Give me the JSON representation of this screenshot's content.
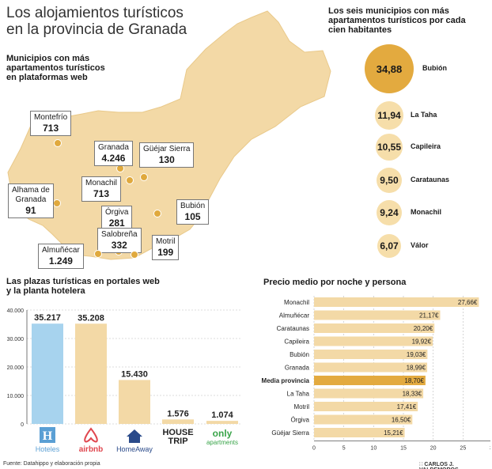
{
  "title": [
    "Los alojamientos turísticos",
    "en la provincia de Granada"
  ],
  "map": {
    "subtitle": "Municipios con más apartamentos turísticos en plataformas web",
    "callouts": [
      {
        "name": "Montefrío",
        "value": "713"
      },
      {
        "name": "Granada",
        "value": "4.246"
      },
      {
        "name": "Güéjar Sierra",
        "value": "130"
      },
      {
        "name": "Monachil",
        "value": "713"
      },
      {
        "name": "Alhama de Granada",
        "value": "91"
      },
      {
        "name": "Bubión",
        "value": "105"
      },
      {
        "name": "Órgiva",
        "value": "281"
      },
      {
        "name": "Salobreña",
        "value": "332"
      },
      {
        "name": "Almuñécar",
        "value": "1.249"
      },
      {
        "name": "Motril",
        "value": "199"
      }
    ],
    "fill_color": "#f3d9a6",
    "dot_color": "#e0a93d"
  },
  "bubbles": {
    "subtitle": "Los seis municipios con más apartamentos turísticos por cada cien habitantes",
    "items": [
      {
        "name": "Bubión",
        "value": "34,88",
        "highlight": true
      },
      {
        "name": "La Taha",
        "value": "11,94"
      },
      {
        "name": "Capileira",
        "value": "10,55"
      },
      {
        "name": "Carataunas",
        "value": "9,50"
      },
      {
        "name": "Monachil",
        "value": "9,24"
      },
      {
        "name": "Válor",
        "value": "6,07"
      }
    ],
    "highlight_color": "#e3aa3f",
    "base_color": "#f6deaa"
  },
  "chart_data": [
    {
      "type": "bar",
      "title": "Las plazas turísticas en portales web y la planta hotelera",
      "categories": [
        "Hoteles",
        "airbnb",
        "HomeAway",
        "HOUSE TRIP",
        "only-apartments"
      ],
      "values": [
        35217,
        35208,
        15430,
        1576,
        1074
      ],
      "value_labels": [
        "35.217",
        "35.208",
        "15.430",
        "1.576",
        "1.074"
      ],
      "ylim": [
        0,
        40000
      ],
      "yticks": [
        "0",
        "10.000",
        "20.000",
        "30.000",
        "40.000"
      ],
      "colors": [
        "#a7d3ee",
        "#f3d9a6",
        "#f3d9a6",
        "#f3d9a6",
        "#f3d9a6"
      ]
    },
    {
      "type": "bar",
      "orientation": "horizontal",
      "title": "Precio medio por noche y persona",
      "categories": [
        "Monachil",
        "Almuñécar",
        "Carataunas",
        "Capileira",
        "Bubión",
        "Granada",
        "Media provincia",
        "La Taha",
        "Motril",
        "Órgiva",
        "Güéjar Sierra"
      ],
      "values": [
        27.66,
        21.17,
        20.2,
        19.92,
        19.03,
        18.99,
        18.7,
        18.33,
        17.41,
        16.5,
        15.21
      ],
      "value_labels": [
        "27,66€",
        "21,17€",
        "20,20€",
        "19,92€",
        "19,03€",
        "18,99€",
        "18,70€",
        "18,33€",
        "17,41€",
        "16,50€",
        "15,21€"
      ],
      "highlight": "Media provincia",
      "xlim": [
        0,
        30
      ],
      "xticks": [
        "0",
        "5",
        "10",
        "15",
        "20",
        "25",
        "30"
      ]
    }
  ],
  "footer": {
    "source": "Fuente: Datahippo y elaboración propia",
    "author": "CARLOS J. VALDEMOROS"
  }
}
